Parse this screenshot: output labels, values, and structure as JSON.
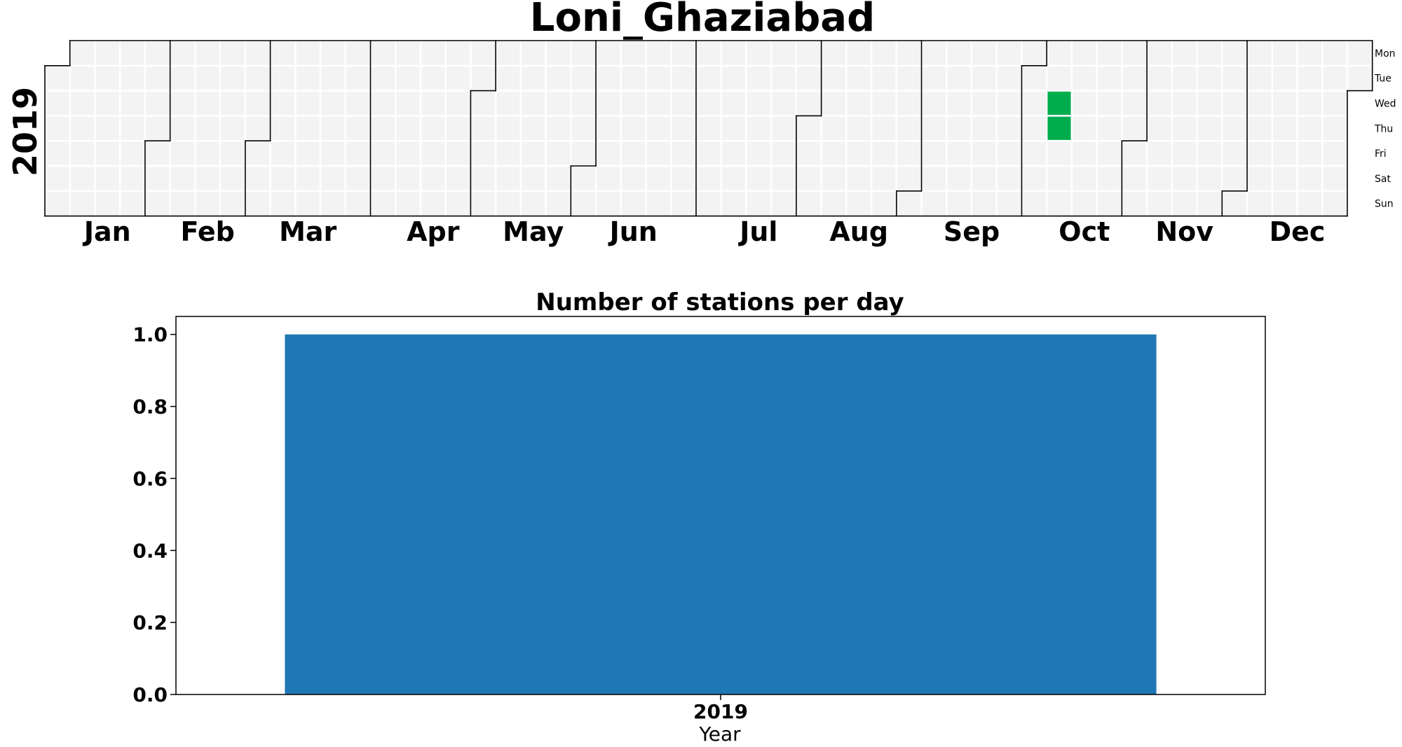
{
  "chart_data": [
    {
      "type": "heatmap",
      "title": "Loni_Ghaziabad",
      "year": "2019",
      "months": [
        "Jan",
        "Feb",
        "Mar",
        "Apr",
        "May",
        "Jun",
        "Jul",
        "Aug",
        "Sep",
        "Oct",
        "Nov",
        "Dec"
      ],
      "weekdays": [
        "Mon",
        "Tue",
        "Wed",
        "Thu",
        "Fri",
        "Sat",
        "Sun"
      ],
      "active_dates": [
        "2019-10-09",
        "2019-10-10"
      ],
      "colors": {
        "empty": "#f3f3f3",
        "active": "#00ad4d",
        "grid": "#ffffff",
        "border": "#000000"
      }
    },
    {
      "type": "bar",
      "title": "Number of stations per day",
      "categories": [
        "2019"
      ],
      "values": [
        1.0
      ],
      "xlabel": "Year",
      "ylabel": "",
      "ylim": [
        0,
        1.05
      ],
      "yticks": [
        "0.0",
        "0.2",
        "0.4",
        "0.6",
        "0.8",
        "1.0"
      ],
      "color": "#1f77b4"
    }
  ]
}
